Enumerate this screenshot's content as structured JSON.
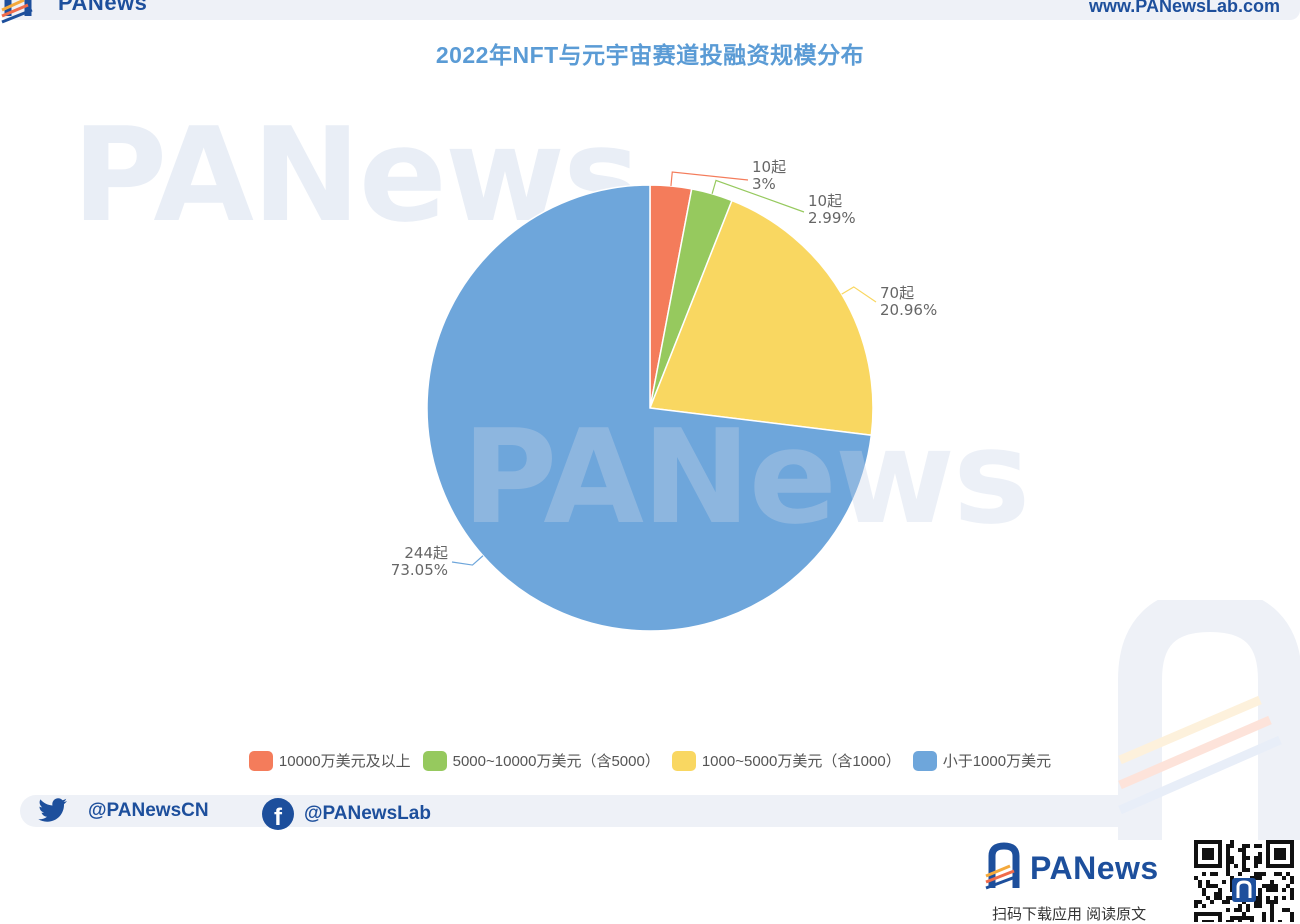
{
  "header": {
    "brand": "PANews",
    "site_url": "www.PANewsLab.com"
  },
  "watermark": "PANews",
  "chart_data": {
    "type": "pie",
    "title": "2022年NFT与元宇宙赛道投融资规模分布",
    "legend_position": "bottom",
    "slices": [
      {
        "name": "10000万美元及以上",
        "count": "10起",
        "percent": "3%",
        "value": 10,
        "color": "#f47c5b"
      },
      {
        "name": "5000~10000万美元（含5000）",
        "count": "10起",
        "percent": "2.99%",
        "value": 10,
        "color": "#96c95e"
      },
      {
        "name": "1000~5000万美元（含1000）",
        "count": "70起",
        "percent": "20.96%",
        "value": 70,
        "color": "#f9d761"
      },
      {
        "name": "小于1000万美元",
        "count": "244起",
        "percent": "73.05%",
        "value": 244,
        "color": "#6ea6db"
      }
    ]
  },
  "social": {
    "twitter": "@PANewsCN",
    "facebook": "@PANewsLab",
    "twitter_icon": "twitter-bird-icon",
    "facebook_icon": "facebook-icon",
    "facebook_glyph": "f"
  },
  "footer": {
    "brand": "PANews",
    "scan_text": "扫码下载应用  阅读原文"
  }
}
